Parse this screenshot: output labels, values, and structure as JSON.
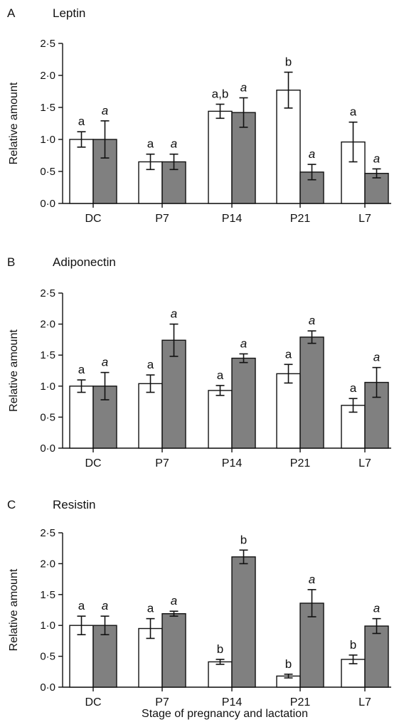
{
  "figure": {
    "xlabel": "Stage of pregnancy and lactation"
  },
  "chart_data": [
    {
      "type": "bar",
      "panel": "A",
      "title": "Leptin",
      "ylabel": "Relative amount",
      "ylim": [
        0,
        2.5
      ],
      "yticks": [
        "0·0",
        "0·5",
        "1·0",
        "1·5",
        "2·0",
        "2·5"
      ],
      "categories": [
        "DC",
        "P7",
        "P14",
        "P21",
        "L7"
      ],
      "series": [
        {
          "color": "#ffffff",
          "values": [
            1.0,
            0.65,
            1.44,
            1.77,
            0.96
          ],
          "errors": [
            0.12,
            0.12,
            0.11,
            0.28,
            0.31
          ],
          "labels": [
            "a",
            "a",
            "a,b",
            "b",
            "a"
          ],
          "label_style": "normal"
        },
        {
          "color": "#808080",
          "values": [
            1.0,
            0.65,
            1.42,
            0.49,
            0.47
          ],
          "errors": [
            0.29,
            0.12,
            0.23,
            0.12,
            0.07
          ],
          "labels": [
            "a",
            "a",
            "a",
            "a",
            "a"
          ],
          "label_style": "italic"
        }
      ]
    },
    {
      "type": "bar",
      "panel": "B",
      "title": "Adiponectin",
      "ylabel": "Relative amount",
      "ylim": [
        0,
        2.5
      ],
      "yticks": [
        "0·0",
        "0·5",
        "1·0",
        "1·5",
        "2·0",
        "2·5"
      ],
      "categories": [
        "DC",
        "P7",
        "P14",
        "P21",
        "L7"
      ],
      "series": [
        {
          "color": "#ffffff",
          "values": [
            1.0,
            1.04,
            0.93,
            1.2,
            0.69
          ],
          "errors": [
            0.1,
            0.14,
            0.08,
            0.15,
            0.11
          ],
          "labels": [
            "a",
            "a",
            "a",
            "a",
            "a"
          ],
          "label_style": "normal"
        },
        {
          "color": "#808080",
          "values": [
            1.0,
            1.74,
            1.45,
            1.79,
            1.06
          ],
          "errors": [
            0.22,
            0.26,
            0.07,
            0.1,
            0.24
          ],
          "labels": [
            "a",
            "a",
            "a",
            "a",
            "a"
          ],
          "label_style": "italic"
        }
      ]
    },
    {
      "type": "bar",
      "panel": "C",
      "title": "Resistin",
      "ylabel": "Relative amount",
      "ylim": [
        0,
        2.5
      ],
      "yticks": [
        "0·0",
        "0·5",
        "1·0",
        "1·5",
        "2·0",
        "2·5"
      ],
      "categories": [
        "DC",
        "P7",
        "P14",
        "P21",
        "L7"
      ],
      "series": [
        {
          "color": "#ffffff",
          "values": [
            1.0,
            0.95,
            0.41,
            0.18,
            0.45
          ],
          "errors": [
            0.15,
            0.16,
            0.04,
            0.03,
            0.07
          ],
          "labels": [
            "a",
            "a",
            "b",
            "b",
            "b"
          ],
          "label_style": "normal"
        },
        {
          "color": "#808080",
          "values": [
            1.0,
            1.19,
            2.11,
            1.36,
            0.99
          ],
          "errors": [
            0.15,
            0.04,
            0.11,
            0.22,
            0.12
          ],
          "labels": [
            "a",
            "a",
            "b",
            "a",
            "a"
          ],
          "label_style": "mixed"
        }
      ]
    }
  ]
}
